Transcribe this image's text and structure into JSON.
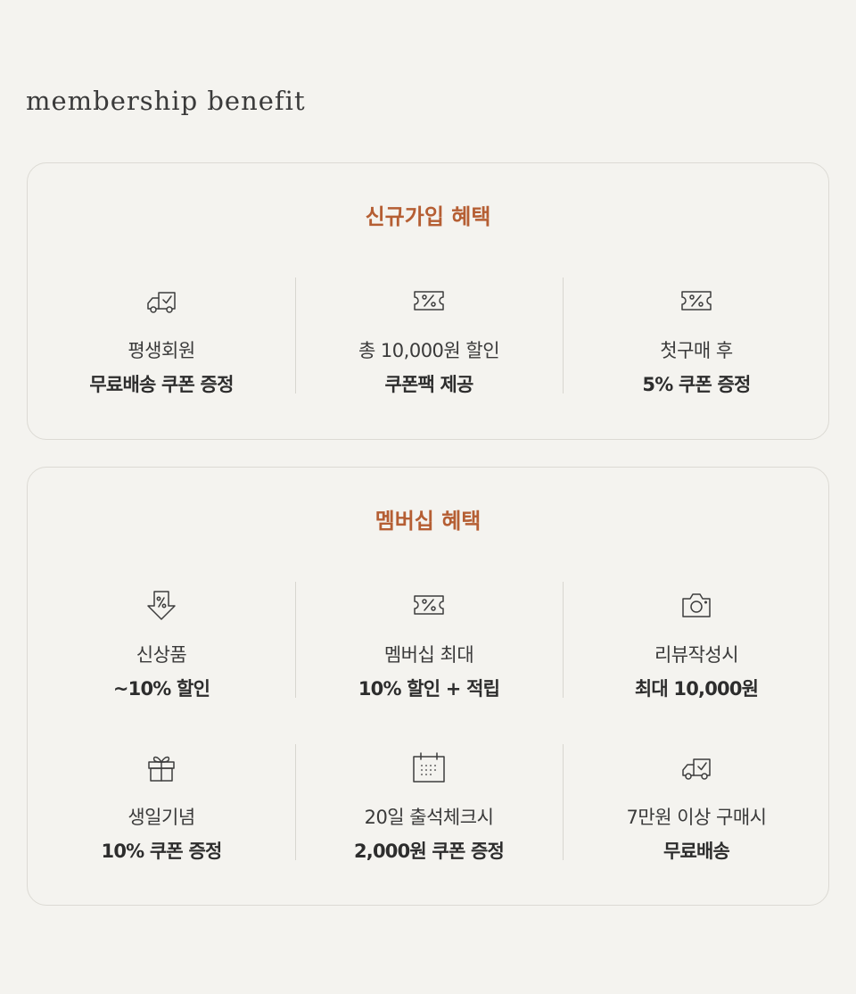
{
  "heading": "membership benefit",
  "signup": {
    "title": "신규가입 혜택",
    "items": [
      {
        "icon": "delivery-truck-icon",
        "line1": "평생회원",
        "line2": "무료배송 쿠폰 증정"
      },
      {
        "icon": "percent-ticket-icon",
        "line1": "총 10,000원 할인",
        "line2": "쿠폰팩 제공"
      },
      {
        "icon": "percent-ticket-icon",
        "line1": "첫구매 후",
        "line2": "5% 쿠폰 증정"
      }
    ]
  },
  "member": {
    "title": "멤버십 혜택",
    "items": [
      {
        "icon": "percent-tag-down-icon",
        "line1": "신상품",
        "line2": "~10% 할인"
      },
      {
        "icon": "percent-ticket-icon",
        "line1": "멤버십 최대",
        "line2": "10% 할인 + 적립"
      },
      {
        "icon": "camera-icon",
        "line1": "리뷰작성시",
        "line2": "최대 10,000원"
      },
      {
        "icon": "gift-icon",
        "line1": "생일기념",
        "line2": "10% 쿠폰 증정"
      },
      {
        "icon": "calendar-icon",
        "line1": "20일 출석체크시",
        "line2": "2,000원 쿠폰 증정"
      },
      {
        "icon": "delivery-truck-icon",
        "line1": "7만원 이상 구매시",
        "line2": "무료배송"
      }
    ]
  }
}
